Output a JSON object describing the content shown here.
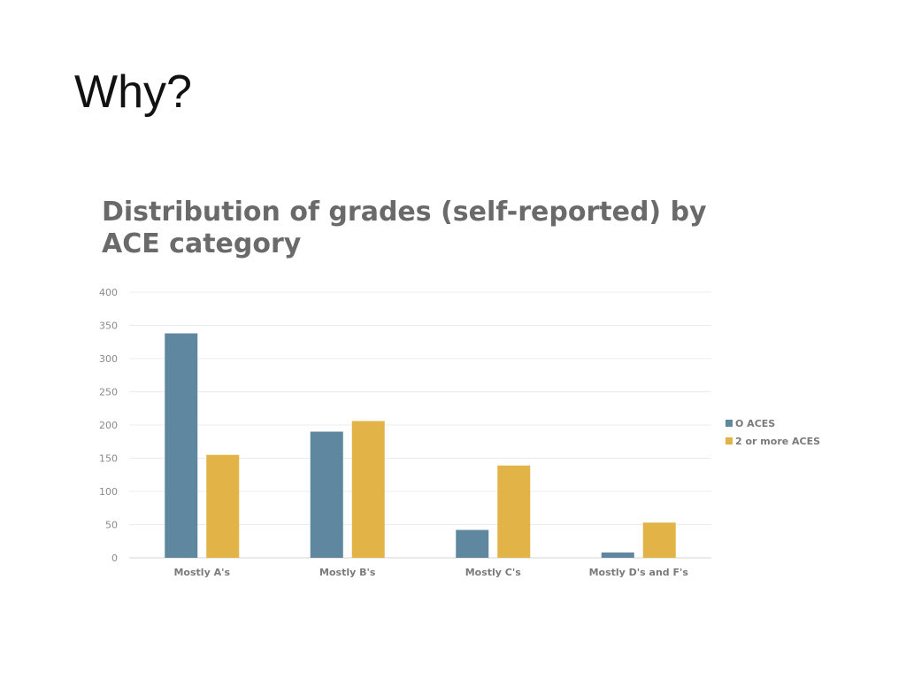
{
  "slide": {
    "title": "Why?"
  },
  "chart_data": {
    "type": "bar",
    "title": "Distribution of grades (self-reported) by ACE category",
    "categories": [
      "Mostly A's",
      "Mostly B's",
      "Mostly C's",
      "Mostly D's and F's"
    ],
    "series": [
      {
        "name": "O ACES",
        "values": [
          338,
          190,
          42,
          8
        ],
        "color": "#5f87a0"
      },
      {
        "name": "2 or more ACES",
        "values": [
          155,
          206,
          139,
          53
        ],
        "color": "#e2b346"
      }
    ],
    "yticks": [
      "0",
      "50",
      "100",
      "150",
      "200",
      "250",
      "300",
      "350",
      "400"
    ],
    "ylim": [
      0,
      400
    ],
    "xlabel": "",
    "ylabel": "",
    "grid": true,
    "legend": "right"
  }
}
